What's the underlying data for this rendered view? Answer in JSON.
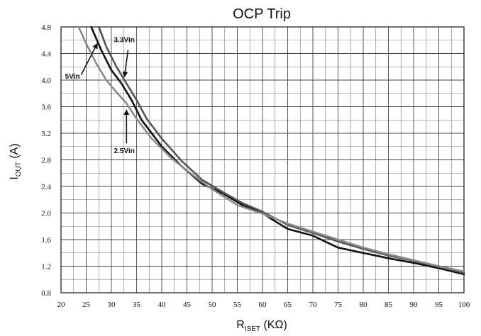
{
  "chart_data": {
    "type": "line",
    "title": "OCP Trip",
    "xlabel": {
      "main": "R",
      "sub": "ISET",
      "unit": " (KΩ)"
    },
    "ylabel": {
      "main": "I",
      "sub": "OUT",
      "unit": " (A)"
    },
    "xlim": [
      20,
      100
    ],
    "ylim": [
      0.8,
      4.8
    ],
    "xticks": [
      20,
      25,
      30,
      35,
      40,
      45,
      50,
      55,
      60,
      65,
      70,
      75,
      80,
      85,
      90,
      95,
      100
    ],
    "yticks": [
      0.8,
      1.2,
      1.6,
      2.0,
      2.4,
      2.8,
      3.2,
      3.6,
      4.0,
      4.4,
      4.8
    ],
    "x_minor_step": 2.5,
    "y_minor_step": 0.2,
    "grid": true,
    "series": [
      {
        "name": "5Vin",
        "color": "#111111",
        "x": [
          26,
          28,
          30,
          32,
          34,
          36,
          40,
          44,
          48,
          52,
          56,
          60,
          62,
          65,
          70,
          75,
          80,
          85,
          90,
          95,
          100
        ],
        "y": [
          4.8,
          4.45,
          4.15,
          3.95,
          3.7,
          3.4,
          3.0,
          2.7,
          2.44,
          2.3,
          2.12,
          2.0,
          1.9,
          1.76,
          1.66,
          1.48,
          1.4,
          1.32,
          1.25,
          1.17,
          1.08
        ]
      },
      {
        "name": "3.3Vin",
        "color": "#555555",
        "x": [
          27.5,
          29,
          31,
          33,
          35,
          37,
          40,
          44,
          48,
          52,
          56,
          60,
          65,
          70,
          75,
          80,
          85,
          90,
          95,
          100
        ],
        "y": [
          4.8,
          4.5,
          4.2,
          3.95,
          3.7,
          3.42,
          3.12,
          2.78,
          2.5,
          2.32,
          2.15,
          2.02,
          1.82,
          1.7,
          1.57,
          1.46,
          1.36,
          1.28,
          1.19,
          1.1
        ]
      },
      {
        "name": "2.5Vin",
        "color": "#8a8a8a",
        "x": [
          23.5,
          25,
          27,
          29,
          31,
          33,
          35,
          38,
          42,
          46,
          50,
          55,
          60,
          65,
          70,
          75,
          80,
          85,
          90,
          95,
          100
        ],
        "y": [
          4.8,
          4.55,
          4.25,
          4.0,
          3.82,
          3.65,
          3.42,
          3.12,
          2.82,
          2.58,
          2.36,
          2.12,
          1.99,
          1.84,
          1.72,
          1.6,
          1.48,
          1.38,
          1.29,
          1.2,
          1.12
        ]
      }
    ],
    "annotations": [
      {
        "text": "5Vin",
        "text_at": [
          20.8,
          4.02
        ],
        "arrow_from": [
          24.0,
          4.08
        ],
        "arrow_to": [
          27.2,
          4.55
        ]
      },
      {
        "text": "3.3Vin",
        "text_at": [
          30.5,
          4.57
        ],
        "arrow_from": [
          33.3,
          4.45
        ],
        "arrow_to": [
          32.6,
          4.05
        ]
      },
      {
        "text": "2.5Vin",
        "text_at": [
          30.5,
          2.9
        ],
        "arrow_from": [
          33.0,
          3.05
        ],
        "arrow_to": [
          33.0,
          3.55
        ]
      }
    ]
  }
}
